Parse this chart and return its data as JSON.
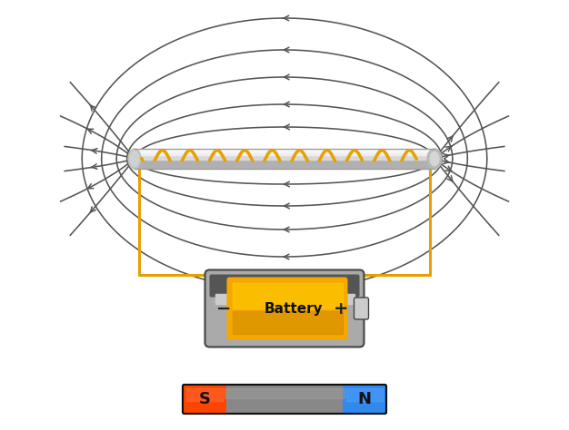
{
  "bg_color": "#ffffff",
  "field_line_color": "#555555",
  "coil_color": "#E8A000",
  "wire_color": "#E8A000",
  "figsize": [
    6.26,
    4.74
  ],
  "dpi": 100,
  "battery_label": "Battery",
  "S_label": "S",
  "N_label": "N"
}
